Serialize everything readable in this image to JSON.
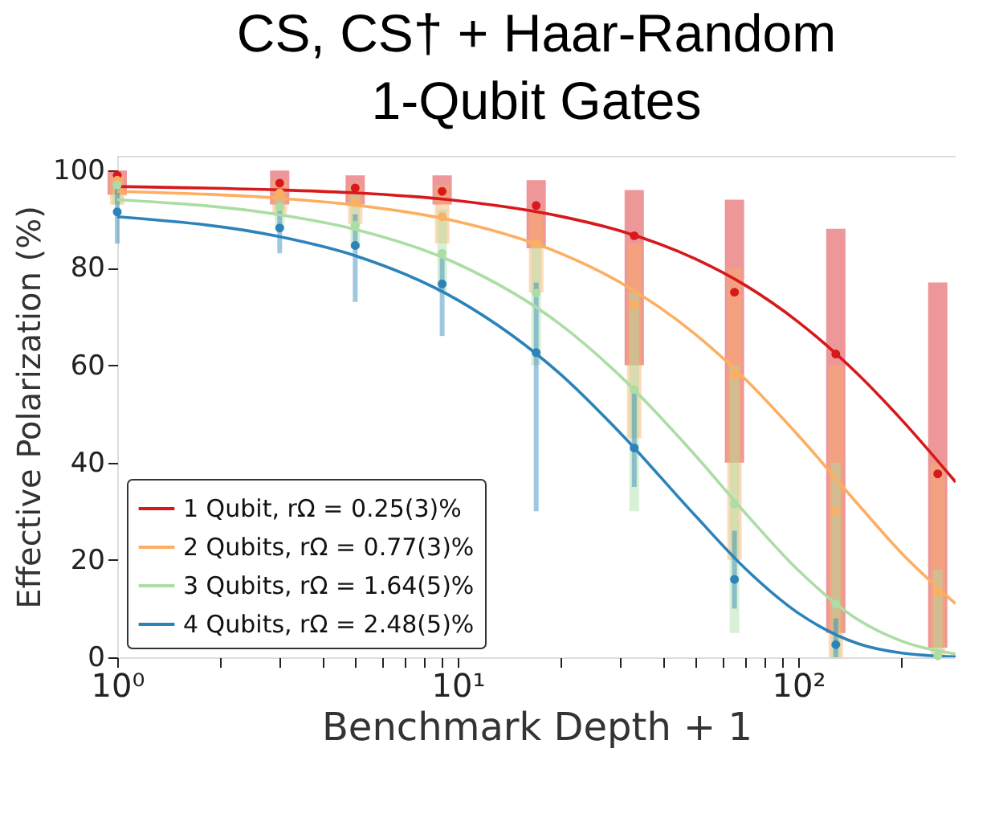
{
  "chart_data": {
    "type": "scatter",
    "title": "CS, CS† + Haar-Random\n1-Qubit Gates",
    "xlabel": "Benchmark Depth + 1",
    "ylabel": "Effective Polarization (%)",
    "x": [
      1,
      3,
      5,
      9,
      17,
      33,
      65,
      129,
      257
    ],
    "xlim": [
      1,
      290
    ],
    "ylim": [
      0,
      103
    ],
    "xticks": [
      {
        "value": 1,
        "label": "10⁰"
      },
      {
        "value": 2,
        "label": null
      },
      {
        "value": 3,
        "label": null
      },
      {
        "value": 4,
        "label": null
      },
      {
        "value": 5,
        "label": null
      },
      {
        "value": 6,
        "label": null
      },
      {
        "value": 7,
        "label": null
      },
      {
        "value": 8,
        "label": null
      },
      {
        "value": 9,
        "label": null
      },
      {
        "value": 10,
        "label": "10¹"
      },
      {
        "value": 20,
        "label": null
      },
      {
        "value": 30,
        "label": null
      },
      {
        "value": 40,
        "label": null
      },
      {
        "value": 50,
        "label": null
      },
      {
        "value": 60,
        "label": null
      },
      {
        "value": 70,
        "label": null
      },
      {
        "value": 80,
        "label": null
      },
      {
        "value": 90,
        "label": null
      },
      {
        "value": 100,
        "label": "10²"
      },
      {
        "value": 200,
        "label": null
      }
    ],
    "yticks": [
      0,
      20,
      40,
      60,
      80,
      100
    ],
    "log": "x",
    "grid": false,
    "legend": "bottom left",
    "marker": "circle",
    "line_style": "solid",
    "series": [
      {
        "color": "#d7191c",
        "values": [
          99,
          97.4,
          96.4,
          95.7,
          92.8,
          86.6,
          75,
          62.3,
          37.7
        ],
        "errors": [
          [
            95,
            100
          ],
          [
            93,
            100
          ],
          [
            93,
            99
          ],
          [
            93,
            99
          ],
          [
            84,
            98
          ],
          [
            60,
            96
          ],
          [
            40,
            94
          ],
          [
            5,
            88
          ],
          [
            2,
            77
          ]
        ]
      },
      {
        "color": "#fdae61",
        "values": [
          98,
          95.4,
          93.4,
          90.5,
          85,
          72.5,
          58,
          30,
          13.4
        ],
        "errors": [
          [
            93,
            99
          ],
          [
            91,
            98
          ],
          [
            89,
            97
          ],
          [
            85,
            97
          ],
          [
            75,
            92
          ],
          [
            45,
            85
          ],
          [
            20,
            80
          ],
          [
            0,
            60
          ],
          [
            0,
            40
          ]
        ]
      },
      {
        "color": "#abdda4",
        "values": [
          97,
          92.5,
          88.8,
          83,
          74.8,
          55,
          31.5,
          11,
          0.3
        ],
        "errors": [
          [
            93,
            99
          ],
          [
            88,
            96
          ],
          [
            84,
            95
          ],
          [
            75,
            92
          ],
          [
            60,
            85
          ],
          [
            30,
            75
          ],
          [
            5,
            60
          ],
          [
            0,
            40
          ],
          [
            1,
            18
          ]
        ]
      },
      {
        "color": "#2b83ba",
        "x": [
          1,
          3,
          5,
          9,
          17,
          33,
          65,
          129
        ],
        "values": [
          91.5,
          88.2,
          84.6,
          76.7,
          62.6,
          43,
          16,
          2.6
        ],
        "errors": [
          [
            85,
            98
          ],
          [
            83,
            93
          ],
          [
            73,
            91
          ],
          [
            66,
            82
          ],
          [
            30,
            77
          ],
          [
            35,
            55
          ],
          [
            10,
            26
          ],
          [
            0,
            8
          ]
        ]
      },
      {
        "type": "line",
        "marker": "none",
        "name": "1 Qubit,  rΩ = 0.25(3)%",
        "color": "#d7191c",
        "x": [
          1,
          3,
          5,
          10,
          20,
          30,
          50,
          70,
          100,
          150,
          200,
          290
        ],
        "values": [
          96.7,
          96.0,
          95.4,
          93.8,
          90.6,
          87.6,
          81.8,
          76.4,
          68.9,
          58.1,
          49.0,
          36.0
        ]
      },
      {
        "type": "line",
        "marker": "none",
        "name": "2 Qubits, rΩ = 0.77(3)%",
        "color": "#fdae61",
        "x": [
          1,
          3,
          5,
          10,
          20,
          30,
          50,
          70,
          100,
          150,
          200,
          290
        ],
        "values": [
          95.7,
          94.3,
          92.9,
          89.5,
          83.0,
          77.0,
          66.3,
          57.1,
          45.6,
          31.4,
          21.6,
          11.0
        ]
      },
      {
        "type": "line",
        "marker": "none",
        "name": "3 Qubits, rΩ = 1.64(5)%",
        "color": "#abdda4",
        "x": [
          1,
          3,
          5,
          10,
          20,
          30,
          50,
          70,
          100,
          150,
          200,
          290
        ],
        "values": [
          94.0,
          90.9,
          87.9,
          80.8,
          68.4,
          57.8,
          41.4,
          29.6,
          17.9,
          7.7,
          3.4,
          0.7
        ]
      },
      {
        "type": "line",
        "marker": "none",
        "name": "4 Qubits, rΩ = 2.48(5)%",
        "color": "#2b83ba",
        "x": [
          1,
          3,
          5,
          10,
          20,
          30,
          50,
          70,
          100,
          150,
          200,
          290
        ],
        "values": [
          90.5,
          86.4,
          82.5,
          73.4,
          58.2,
          46.1,
          29.0,
          18.2,
          9.1,
          2.8,
          0.9,
          0.1
        ]
      }
    ]
  }
}
